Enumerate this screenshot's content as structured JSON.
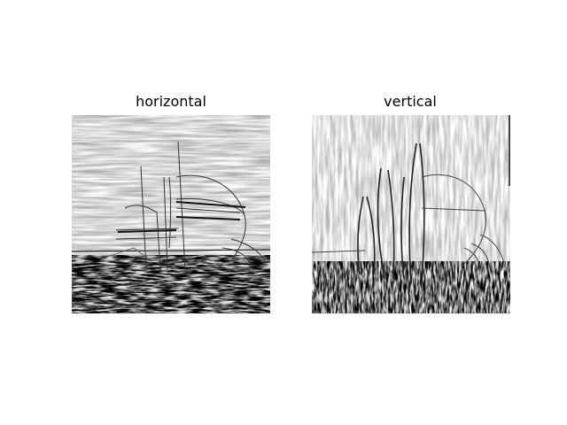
{
  "figure": {
    "panels": [
      {
        "title": "horizontal"
      },
      {
        "title": "vertical"
      }
    ]
  }
}
